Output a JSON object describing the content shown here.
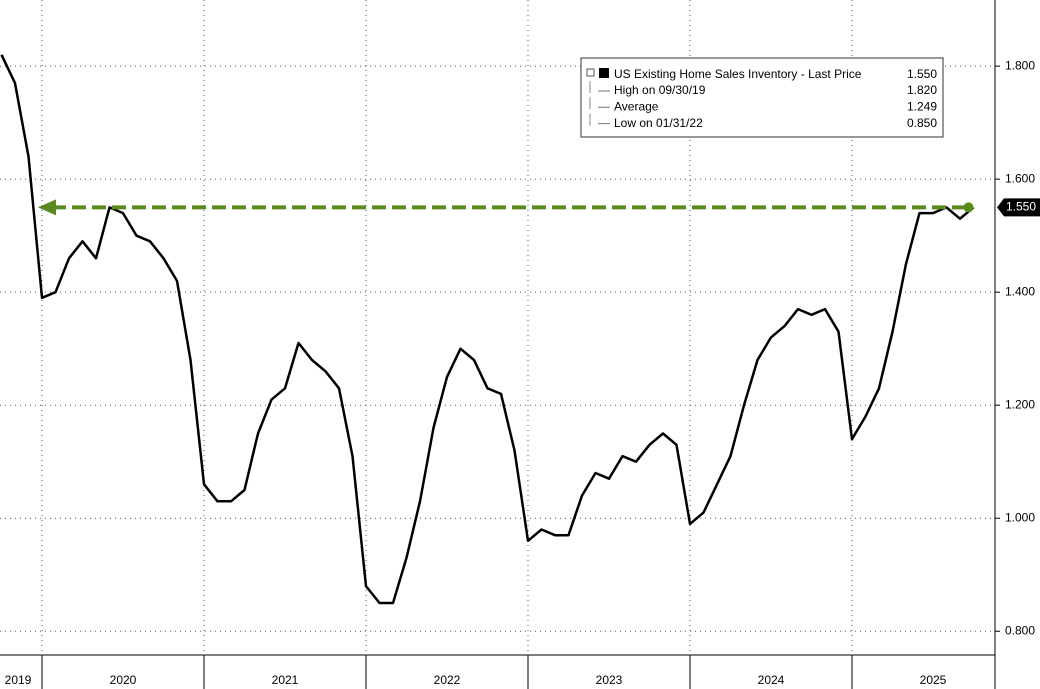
{
  "chart_data": {
    "type": "line",
    "series": [
      {
        "name": "US Existing Home Sales Inventory - Last Price",
        "color": "#000000",
        "x": [
          "2019-09",
          "2019-10",
          "2019-11",
          "2019-12",
          "2020-01",
          "2020-02",
          "2020-03",
          "2020-04",
          "2020-05",
          "2020-06",
          "2020-07",
          "2020-08",
          "2020-09",
          "2020-10",
          "2020-11",
          "2020-12",
          "2021-01",
          "2021-02",
          "2021-03",
          "2021-04",
          "2021-05",
          "2021-06",
          "2021-07",
          "2021-08",
          "2021-09",
          "2021-10",
          "2021-11",
          "2021-12",
          "2022-01",
          "2022-02",
          "2022-03",
          "2022-04",
          "2022-05",
          "2022-06",
          "2022-07",
          "2022-08",
          "2022-09",
          "2022-10",
          "2022-11",
          "2022-12",
          "2023-01",
          "2023-02",
          "2023-03",
          "2023-04",
          "2023-05",
          "2023-06",
          "2023-07",
          "2023-08",
          "2023-09",
          "2023-10",
          "2023-11",
          "2023-12",
          "2024-01",
          "2024-02",
          "2024-03",
          "2024-04",
          "2024-05",
          "2024-06",
          "2024-07",
          "2024-08",
          "2024-09",
          "2024-10",
          "2024-11",
          "2024-12",
          "2025-01",
          "2025-02",
          "2025-03",
          "2025-04",
          "2025-05",
          "2025-06",
          "2025-07",
          "2025-08",
          "2025-09"
        ],
        "values": [
          1.82,
          1.77,
          1.64,
          1.39,
          1.4,
          1.46,
          1.49,
          1.46,
          1.55,
          1.54,
          1.5,
          1.49,
          1.46,
          1.42,
          1.28,
          1.06,
          1.03,
          1.03,
          1.05,
          1.15,
          1.21,
          1.23,
          1.31,
          1.28,
          1.26,
          1.23,
          1.11,
          0.88,
          0.85,
          0.85,
          0.93,
          1.03,
          1.16,
          1.25,
          1.3,
          1.28,
          1.23,
          1.22,
          1.12,
          0.96,
          0.98,
          0.97,
          0.97,
          1.04,
          1.08,
          1.07,
          1.11,
          1.1,
          1.13,
          1.15,
          1.13,
          0.99,
          1.01,
          1.06,
          1.11,
          1.2,
          1.28,
          1.32,
          1.34,
          1.37,
          1.36,
          1.37,
          1.33,
          1.14,
          1.18,
          1.23,
          1.33,
          1.45,
          1.54,
          1.54,
          1.55,
          1.53,
          1.55
        ]
      }
    ],
    "last_value": {
      "value": 1.55,
      "label": "1.550"
    },
    "reference_line_color": "#5a8a1e",
    "stats": [
      {
        "name": "High on 09/30/19",
        "value": 1.82,
        "label": "1.820"
      },
      {
        "name": "Average",
        "value": 1.249,
        "label": "1.249"
      },
      {
        "name": "Low on 01/31/22",
        "value": 0.85,
        "label": "0.850"
      }
    ],
    "year_labels": [
      "2019",
      "2020",
      "2021",
      "2022",
      "2023",
      "2024",
      "2025"
    ],
    "ylim": [
      0.758,
      1.917
    ],
    "yticks": [
      {
        "value": 0.8,
        "label": "0.800"
      },
      {
        "value": 1.0,
        "label": "1.000"
      },
      {
        "value": 1.2,
        "label": "1.200"
      },
      {
        "value": 1.4,
        "label": "1.400"
      },
      {
        "value": 1.6,
        "label": "1.600"
      },
      {
        "value": 1.8,
        "label": "1.800"
      }
    ],
    "grid": true
  }
}
